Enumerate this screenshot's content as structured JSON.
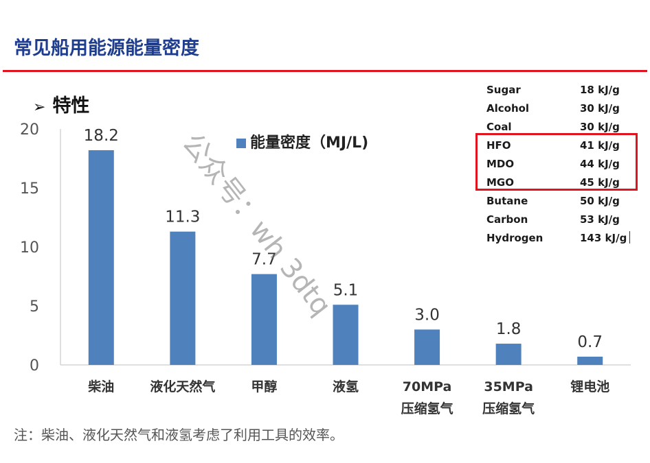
{
  "page": {
    "title": "常见船用能源能量密度",
    "section_label": "特性",
    "footnote": "注：柴油、液化天然气和液氢考虑了利用工具的效率。",
    "watermark": "公众号：wh 3dtq"
  },
  "energy_table": [
    {
      "fuel": "Sugar",
      "value": "18 kJ/g",
      "highlighted": false
    },
    {
      "fuel": "Alcohol",
      "value": "30 kJ/g",
      "highlighted": false
    },
    {
      "fuel": "Coal",
      "value": "30 kJ/g",
      "highlighted": false
    },
    {
      "fuel": "HFO",
      "value": "41 kJ/g",
      "highlighted": true
    },
    {
      "fuel": "MDO",
      "value": "44 kJ/g",
      "highlighted": true
    },
    {
      "fuel": "MGO",
      "value": "45 kJ/g",
      "highlighted": true
    },
    {
      "fuel": "Butane",
      "value": "50 kJ/g",
      "highlighted": false
    },
    {
      "fuel": "Carbon",
      "value": "53 kJ/g",
      "highlighted": false
    },
    {
      "fuel": "Hydrogen",
      "value": "143 kJ/g",
      "highlighted": false
    }
  ],
  "colors": {
    "bar": "#4f81bd",
    "title": "#1f3d8f",
    "accent_red": "#e0141e"
  },
  "chart_data": {
    "type": "bar",
    "categories": [
      "柴油",
      "液化天然气",
      "甲醇",
      "液氢",
      "70MPa\n压缩氢气",
      "35MPa\n压缩氢气",
      "锂电池"
    ],
    "series": [
      {
        "name": "能量密度（MJ/L)",
        "values": [
          18.2,
          11.3,
          7.7,
          5.1,
          3.0,
          1.8,
          0.7
        ]
      }
    ],
    "value_labels": [
      "18.2",
      "11.3",
      "7.7",
      "5.1",
      "3.0",
      "1.8",
      "0.7"
    ],
    "y_ticks": [
      "0",
      "5",
      "10",
      "15",
      "20"
    ],
    "ylim": [
      0,
      20
    ],
    "grid": false,
    "legend": "top-center"
  }
}
